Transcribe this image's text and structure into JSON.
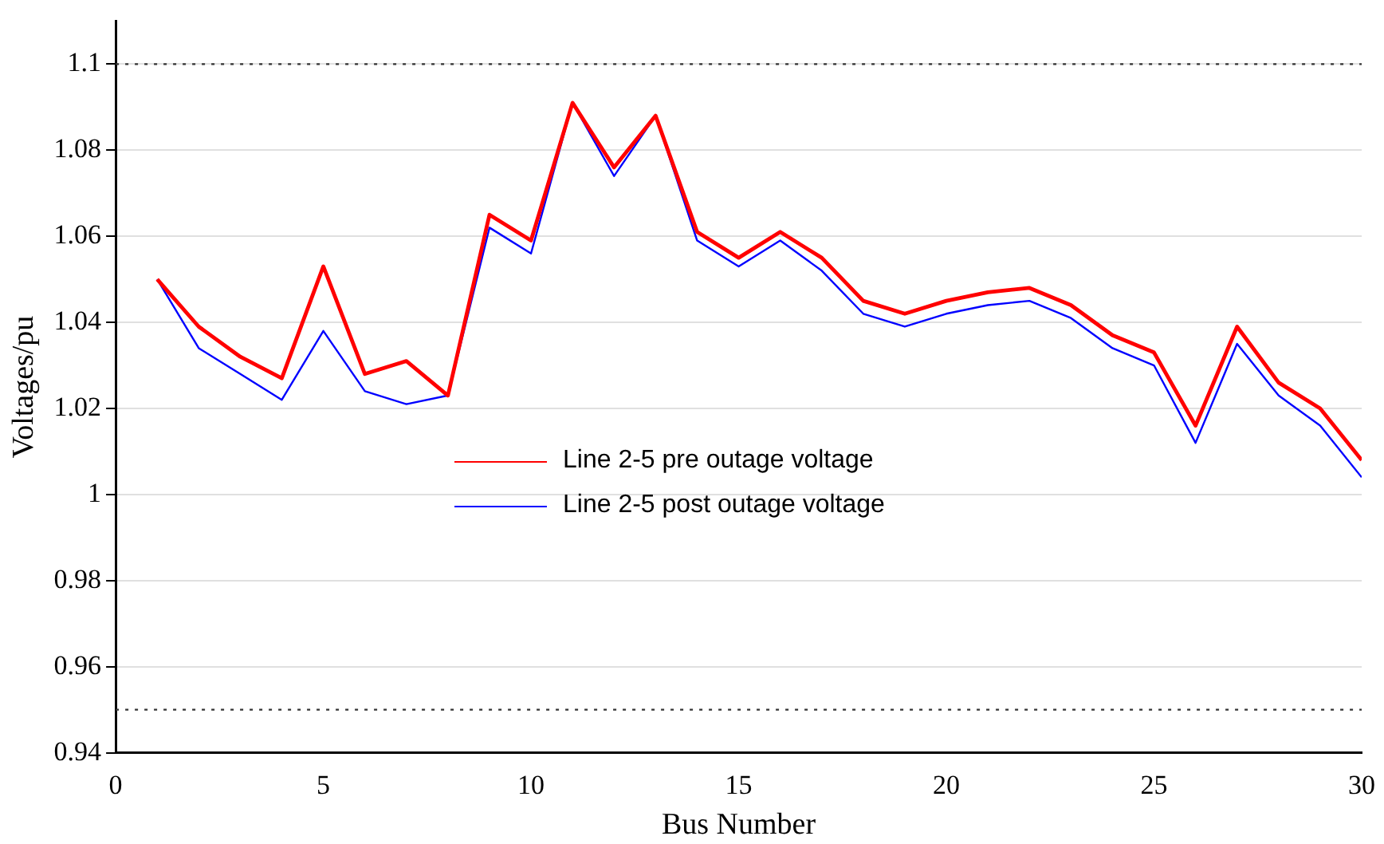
{
  "chart_data": {
    "type": "line",
    "xlabel": "Bus Number",
    "ylabel": "Voltages/pu",
    "x": [
      1,
      2,
      3,
      4,
      5,
      6,
      7,
      8,
      9,
      10,
      11,
      12,
      13,
      14,
      15,
      16,
      17,
      18,
      19,
      20,
      21,
      22,
      23,
      24,
      25,
      26,
      27,
      28,
      29,
      30
    ],
    "series": [
      {
        "name": "Line 2-5 pre outage voltage",
        "color": "#ff0000",
        "values": [
          1.05,
          1.039,
          1.032,
          1.027,
          1.053,
          1.028,
          1.031,
          1.023,
          1.065,
          1.059,
          1.091,
          1.076,
          1.088,
          1.061,
          1.055,
          1.061,
          1.055,
          1.045,
          1.042,
          1.045,
          1.047,
          1.048,
          1.044,
          1.037,
          1.033,
          1.016,
          1.039,
          1.026,
          1.02,
          1.008
        ]
      },
      {
        "name": "Line 2-5 post outage voltage",
        "color": "#0000ff",
        "values": [
          1.05,
          1.034,
          1.028,
          1.022,
          1.038,
          1.024,
          1.021,
          1.023,
          1.062,
          1.056,
          1.091,
          1.074,
          1.088,
          1.059,
          1.053,
          1.059,
          1.052,
          1.042,
          1.039,
          1.042,
          1.044,
          1.045,
          1.041,
          1.034,
          1.03,
          1.012,
          1.035,
          1.023,
          1.016,
          1.004
        ]
      }
    ],
    "xlim": [
      0,
      30
    ],
    "xticks": [
      0,
      5,
      10,
      15,
      20,
      25,
      30
    ],
    "ylim": [
      0.94,
      1.11
    ],
    "yticks": [
      0.94,
      0.96,
      0.98,
      1,
      1.02,
      1.04,
      1.06,
      1.08,
      1.1
    ],
    "ref_lines": [
      {
        "axis": "y",
        "value": 1.1,
        "color": "#333333",
        "line_style": "dotted"
      },
      {
        "axis": "y",
        "value": 0.95,
        "color": "#333333",
        "line_style": "dotted"
      }
    ],
    "grid": "y",
    "legend": "center",
    "marker": "none",
    "line_style": "solid"
  }
}
